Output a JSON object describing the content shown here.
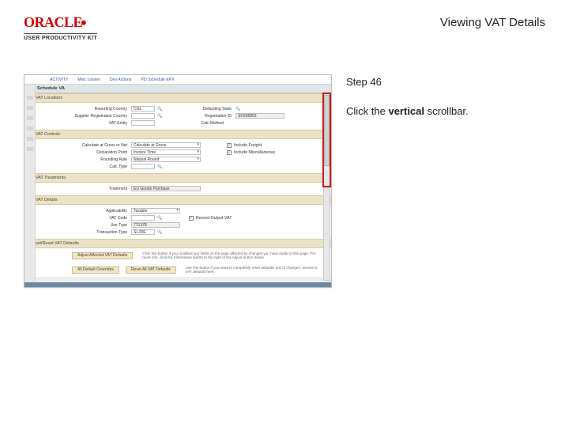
{
  "branding": {
    "logo_text": "ORACLE",
    "subline": "USER PRODUCTIVITY KIT"
  },
  "header": {
    "title": "Viewing VAT Details"
  },
  "instructions": {
    "step_label": "Step 46",
    "line_prefix": "Click the ",
    "line_bold": "vertical",
    "line_suffix": " scrollbar."
  },
  "app": {
    "top_tabs": [
      "",
      "ACTIVITY",
      "Misc Losses",
      "Dev Actions",
      "PO Schedule EPX"
    ],
    "window_title": "PO Schedule VA",
    "sections": {
      "locations": {
        "title": "VAT Locations",
        "rows": {
          "reporting_country": {
            "label": "Reporting Country",
            "value": "CGL"
          },
          "defaulting_state": {
            "label": "Defaulting State",
            "value": ""
          },
          "supplier_registration_country": {
            "label": "Supplier Registration Country",
            "value": ""
          },
          "registration_id": {
            "label": "Registration ID",
            "value": "SH236802"
          },
          "vat_entity": {
            "label": "VAT Entity",
            "value": ""
          },
          "calc_method": {
            "label": "Calc Method",
            "value": ""
          }
        }
      },
      "controls": {
        "title": "VAT Controls",
        "rows": {
          "calc_gross_net": {
            "label": "Calculate at Gross or Net",
            "value": "Calculate at Gross"
          },
          "include_freight": {
            "label": "Include Freight",
            "checked": true
          },
          "declaration_point": {
            "label": "Declaration Point",
            "value": "Invoice Time"
          },
          "include_misc": {
            "label": "Include Miscellaneous",
            "checked": true
          },
          "rounding_rule": {
            "label": "Rounding Rule",
            "value": "Natural Round"
          },
          "calc_type": {
            "label": "Calc Type",
            "value": ""
          }
        }
      },
      "treatments": {
        "title": "VAT Treatments",
        "rows": {
          "treatment": {
            "label": "Treatment",
            "value": "EU Goods Purchase"
          }
        }
      },
      "details": {
        "title": "VAT Details",
        "rows": {
          "applicability": {
            "label": "Applicability",
            "value": "Taxable"
          },
          "vat_code": {
            "label": "VAT Code",
            "value": ""
          },
          "record_output": {
            "label": "Record Output VAT",
            "checked": true
          },
          "use_type": {
            "label": "Use Type",
            "value": "771378"
          },
          "transaction_type": {
            "label": "Transaction Type",
            "value": "SLJDE"
          }
        }
      }
    },
    "adjust_bar": {
      "title": "Adjust/Reset VAT Defaults",
      "note": "Click this button if you modified any fields on the page affected by changes you have made to this page. For more info, click the Information button to the right of the Adjust button below."
    },
    "buttons": {
      "adjust": "Adjust Affected VAT Defaults",
      "reset": "Reset All VAT Defaults",
      "reset_note": "Use this button if you need to completely reset defaults. List of changes, access to VAT defaults here."
    },
    "lower_btns": {
      "a": "All Default Overrides",
      "b": "Reset All VAT Defaults"
    }
  },
  "colors": {
    "highlight": "#d11a1a",
    "section_bar": "#ece3c7",
    "button": "#f2e7c4",
    "oracle_red": "#d80000"
  }
}
